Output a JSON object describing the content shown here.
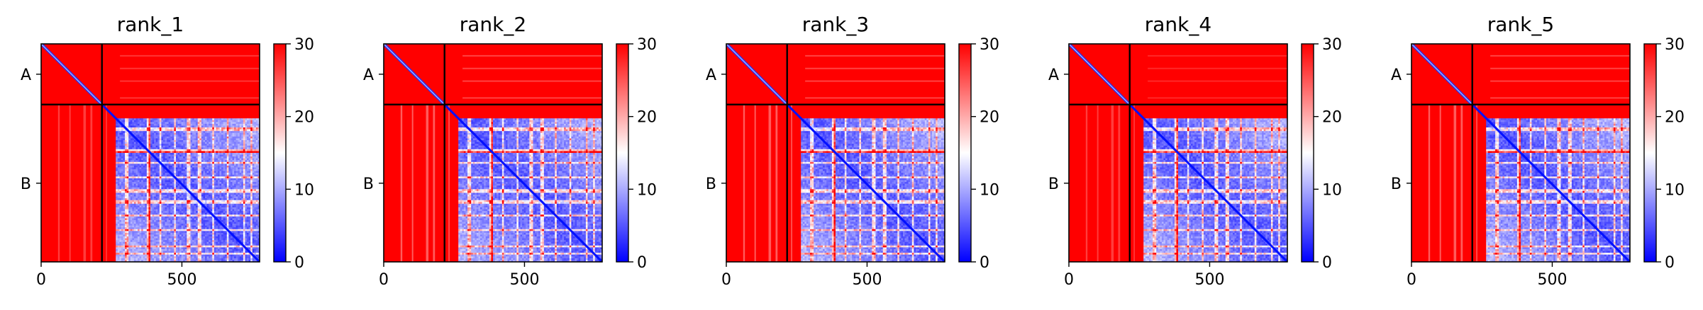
{
  "chart_data": [
    {
      "type": "heatmap",
      "title": "rank_1",
      "chains": [
        "A",
        "B"
      ],
      "chain_boundary": 216,
      "length": 776,
      "xticks": [
        0,
        500
      ],
      "colorbar": {
        "min": 0,
        "max": 30,
        "ticks": [
          0,
          10,
          20,
          30
        ],
        "colors": [
          "#0000ff",
          "#ffffff",
          "#ff0000"
        ]
      },
      "interchain_min": 26,
      "intra_a_min": 22
    },
    {
      "type": "heatmap",
      "title": "rank_2",
      "chains": [
        "A",
        "B"
      ],
      "chain_boundary": 216,
      "length": 776,
      "xticks": [
        0,
        500
      ],
      "colorbar": {
        "min": 0,
        "max": 30,
        "ticks": [
          0,
          10,
          20,
          30
        ],
        "colors": [
          "#0000ff",
          "#ffffff",
          "#ff0000"
        ]
      },
      "interchain_min": 24,
      "intra_a_min": 21
    },
    {
      "type": "heatmap",
      "title": "rank_3",
      "chains": [
        "A",
        "B"
      ],
      "chain_boundary": 216,
      "length": 776,
      "xticks": [
        0,
        500
      ],
      "colorbar": {
        "min": 0,
        "max": 30,
        "ticks": [
          0,
          10,
          20,
          30
        ],
        "colors": [
          "#0000ff",
          "#ffffff",
          "#ff0000"
        ]
      },
      "interchain_min": 24,
      "intra_a_min": 21
    },
    {
      "type": "heatmap",
      "title": "rank_4",
      "chains": [
        "A",
        "B"
      ],
      "chain_boundary": 216,
      "length": 776,
      "xticks": [
        0,
        500
      ],
      "colorbar": {
        "min": 0,
        "max": 30,
        "ticks": [
          0,
          10,
          20,
          30
        ],
        "colors": [
          "#0000ff",
          "#ffffff",
          "#ff0000"
        ]
      },
      "interchain_min": 26,
      "intra_a_min": 23
    },
    {
      "type": "heatmap",
      "title": "rank_5",
      "chains": [
        "A",
        "B"
      ],
      "chain_boundary": 216,
      "length": 776,
      "xticks": [
        0,
        500
      ],
      "colorbar": {
        "min": 0,
        "max": 30,
        "ticks": [
          0,
          10,
          20,
          30
        ],
        "colors": [
          "#0000ff",
          "#ffffff",
          "#ff0000"
        ]
      },
      "interchain_min": 24,
      "intra_a_min": 21
    }
  ]
}
